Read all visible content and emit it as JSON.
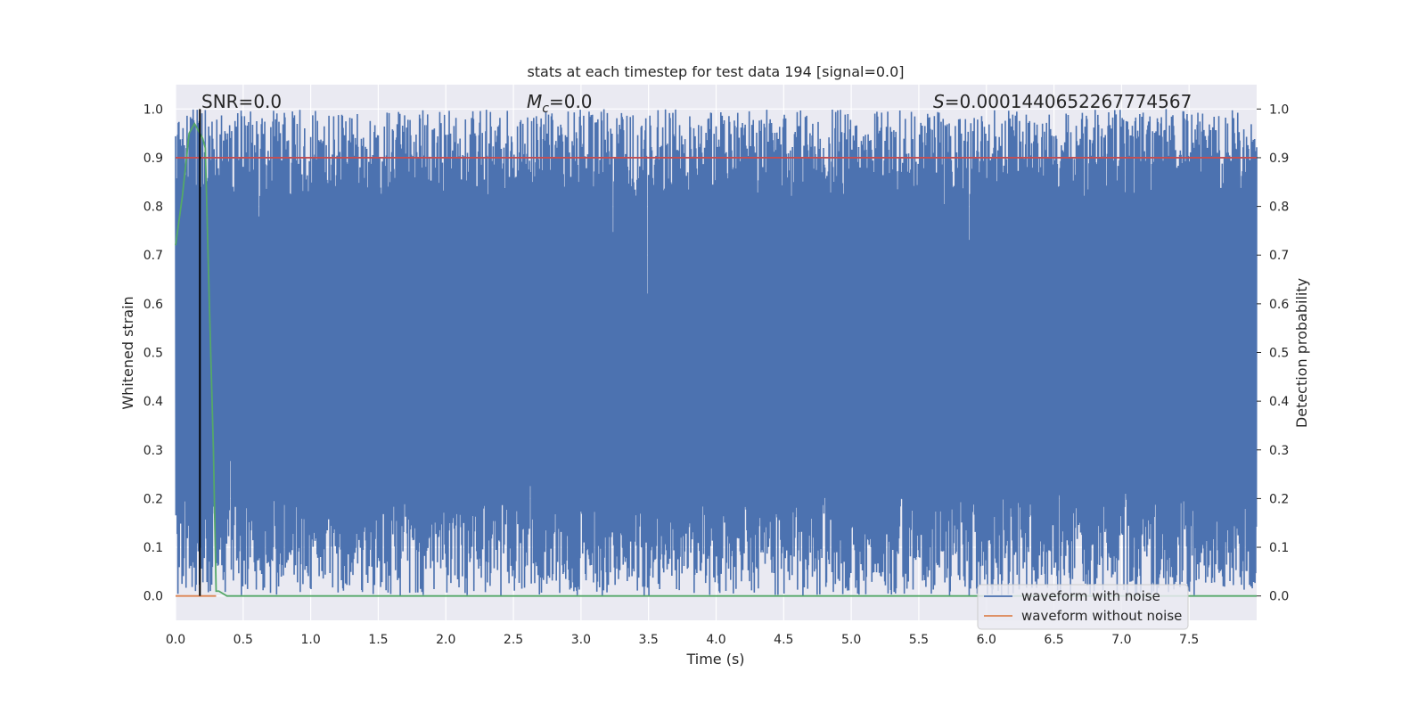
{
  "chart_data": {
    "type": "line",
    "title": "stats at each timestep for test data 194 [signal=0.0]",
    "xlabel": "Time (s)",
    "ylabel_left": "Whitened strain",
    "ylabel_right": "Detection probability",
    "xlim": [
      0.0,
      8.0
    ],
    "ylim": [
      -0.05,
      1.05
    ],
    "x_ticks": [
      "0.0",
      "0.5",
      "1.0",
      "1.5",
      "2.0",
      "2.5",
      "3.0",
      "3.5",
      "4.0",
      "4.5",
      "5.0",
      "5.5",
      "6.0",
      "6.5",
      "7.0",
      "7.5"
    ],
    "y_ticks": [
      "0.0",
      "0.1",
      "0.2",
      "0.3",
      "0.4",
      "0.5",
      "0.6",
      "0.7",
      "0.8",
      "0.9",
      "1.0"
    ],
    "grid": true,
    "legend_position": "lower-right",
    "annotations": {
      "snr_prefix": "SNR=",
      "snr_value": "0.0",
      "mc_symbol": "M",
      "mc_subscript": "c",
      "mc_value": "=0.0",
      "s_symbol": "S",
      "s_value": "=0.0001440652267774567"
    },
    "series": [
      {
        "name": "waveform with noise",
        "color": "#4c72b0",
        "kind": "dense-noise",
        "y_range": [
          0.0,
          1.0
        ]
      },
      {
        "name": "waveform without noise",
        "color": "#dd8452",
        "x": [
          0.0,
          0.3
        ],
        "y": [
          0.0,
          0.0
        ]
      },
      {
        "color": "#55a868",
        "x": [
          0.0,
          0.05,
          0.1,
          0.12,
          0.14,
          0.16,
          0.18,
          0.2,
          0.22,
          0.25,
          0.28,
          0.3,
          0.32,
          0.38,
          8.0
        ],
        "y": [
          0.72,
          0.82,
          0.95,
          0.96,
          0.97,
          0.96,
          0.95,
          0.94,
          0.92,
          0.6,
          0.3,
          0.01,
          0.01,
          0.0,
          0.0
        ]
      },
      {
        "color": "#c44e52",
        "x": [
          0.0,
          8.0
        ],
        "y": [
          0.9,
          0.9
        ]
      }
    ],
    "vertical_line": {
      "x": 0.18,
      "y": [
        0.0,
        1.0
      ],
      "color": "#000000"
    }
  }
}
